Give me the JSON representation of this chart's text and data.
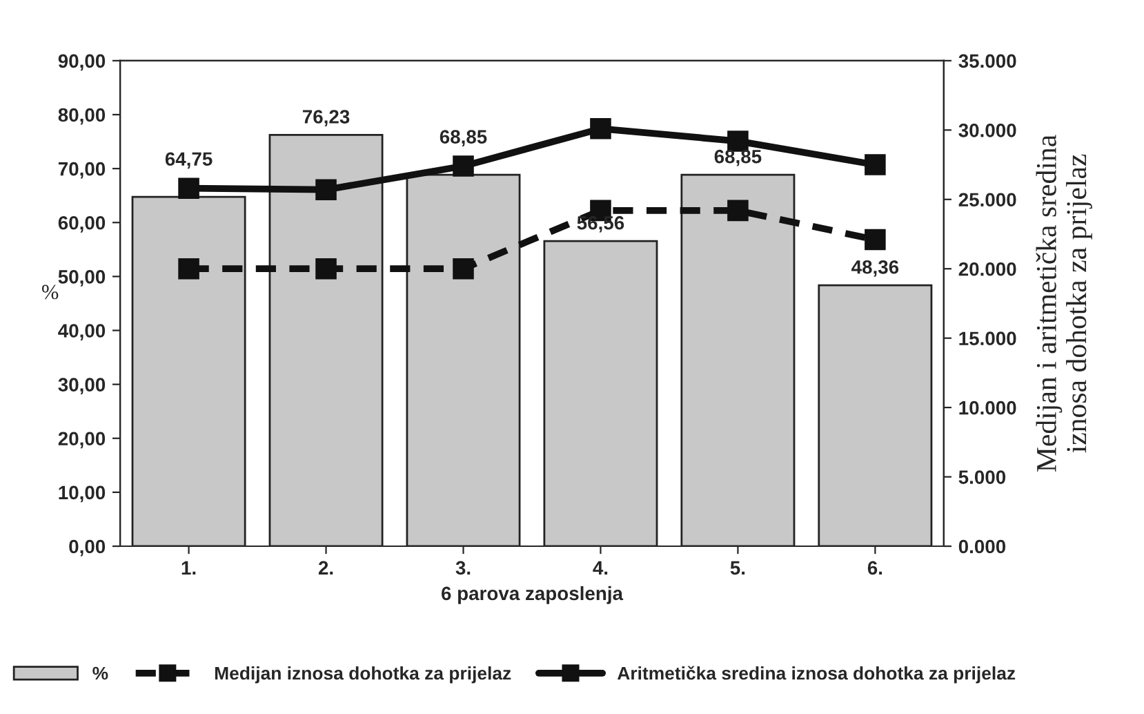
{
  "chart_data": {
    "type": "bar",
    "xlabel": "6 parova zaposlenja",
    "ylabel": "%",
    "y2label": "Medijan i aritmetička sredina\niznosa dohotka za prijelaz",
    "categories": [
      "1.",
      "2.",
      "3.",
      "4.",
      "5.",
      "6."
    ],
    "series": [
      {
        "name": "%",
        "color": "#c8c8c8",
        "values": [
          64.75,
          76.23,
          68.85,
          56.56,
          68.85,
          48.36
        ],
        "value_labels": [
          "64,75",
          "76,23",
          "68,85",
          "56,56",
          "68,85",
          "48,36"
        ]
      },
      {
        "name": "Medijan iznosa dohotka za prijelaz",
        "type": "line",
        "axis": "y2",
        "color": "#111111",
        "line_style": "dashed",
        "marker": "square",
        "values": [
          20000,
          20000,
          20000,
          24200,
          24200,
          22100
        ]
      },
      {
        "name": "Aritmetička sredina iznosa dohotka za prijelaz",
        "type": "line",
        "axis": "y2",
        "color": "#111111",
        "line_style": "solid",
        "marker": "square",
        "values": [
          25800,
          25700,
          27400,
          30100,
          29200,
          27500
        ]
      }
    ],
    "ylim": [
      0,
      90
    ],
    "yticks": [
      {
        "value": 0,
        "label": "0,00"
      },
      {
        "value": 10,
        "label": "10,00"
      },
      {
        "value": 20,
        "label": "20,00"
      },
      {
        "value": 30,
        "label": "30,00"
      },
      {
        "value": 40,
        "label": "40,00"
      },
      {
        "value": 50,
        "label": "50,00"
      },
      {
        "value": 60,
        "label": "60,00"
      },
      {
        "value": 70,
        "label": "70,00"
      },
      {
        "value": 80,
        "label": "80,00"
      },
      {
        "value": 90,
        "label": "90,00"
      }
    ],
    "y2lim": [
      0,
      35000
    ],
    "y2ticks": [
      {
        "value": 0,
        "label": "0.000"
      },
      {
        "value": 5000,
        "label": "5.000"
      },
      {
        "value": 10000,
        "label": "10.000"
      },
      {
        "value": 15000,
        "label": "15.000"
      },
      {
        "value": 20000,
        "label": "20.000"
      },
      {
        "value": 25000,
        "label": "25.000"
      },
      {
        "value": 30000,
        "label": "30.000"
      },
      {
        "value": 35000,
        "label": "35.000"
      }
    ],
    "grid": false,
    "legend": "bottom"
  }
}
